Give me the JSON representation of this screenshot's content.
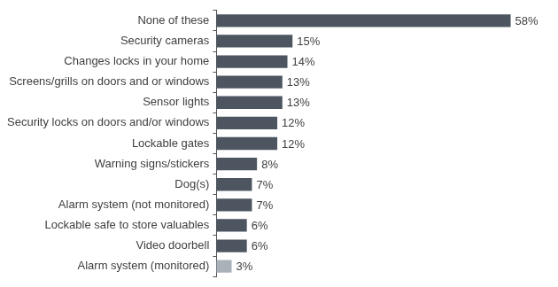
{
  "chart_data": {
    "type": "bar",
    "orientation": "horizontal",
    "categories": [
      "None of these",
      "Security cameras",
      "Changes locks in your home",
      "Screens/grills on doors and or windows",
      "Sensor lights",
      "Security locks on doors and/or windows",
      "Lockable gates",
      "Warning signs/stickers",
      "Dog(s)",
      "Alarm system (not monitored)",
      "Lockable safe to store valuables",
      "Video doorbell",
      "Alarm system (monitored)"
    ],
    "values": [
      58,
      15,
      14,
      13,
      13,
      12,
      12,
      8,
      7,
      7,
      6,
      6,
      3
    ],
    "value_labels": [
      "58%",
      "15%",
      "14%",
      "13%",
      "13%",
      "12%",
      "12%",
      "8%",
      "7%",
      "7%",
      "6%",
      "6%",
      "3%"
    ],
    "colors": [
      "#4c5560",
      "#4c5560",
      "#4c5560",
      "#4c5560",
      "#4c5560",
      "#4c5560",
      "#4c5560",
      "#4c5560",
      "#4c5560",
      "#4c5560",
      "#4c5560",
      "#4c5560",
      "#a9b1b9"
    ],
    "data_labels": true,
    "tick_labels": "y",
    "grid": false
  }
}
